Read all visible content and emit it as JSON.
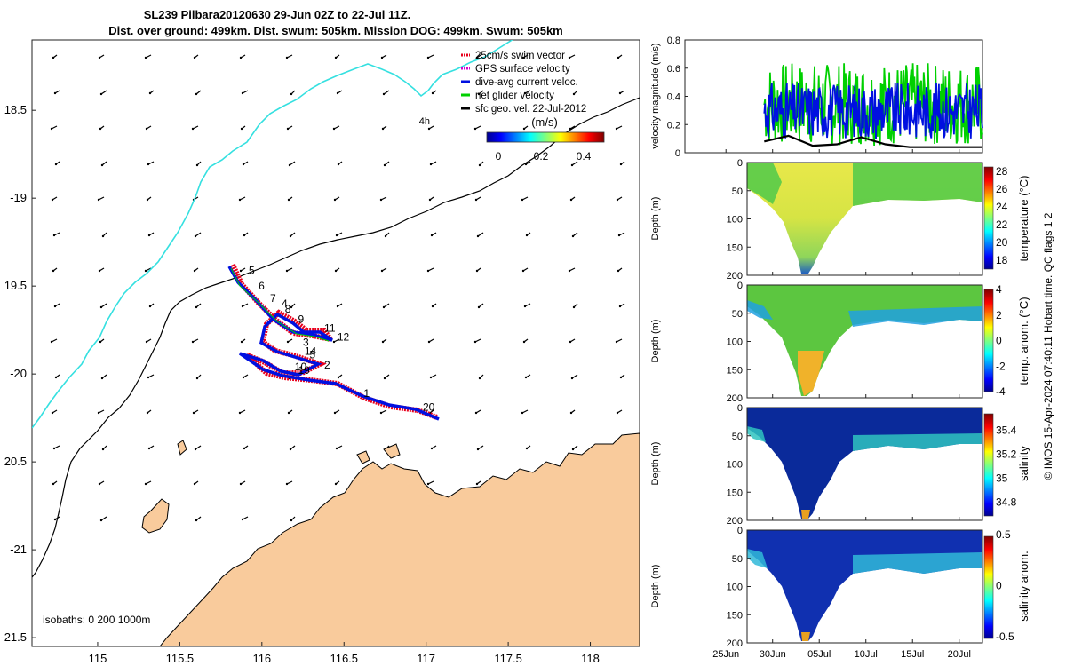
{
  "header": {
    "line1": "SL239 Pilbara20120630 29-Jun 02Z to 22-Jul 11Z.",
    "line2": "Dist. over ground: 499km. Dist. swum: 505km. Mission DOG: 499km. Swum: 505km"
  },
  "map": {
    "lat_ticks": [
      "18.5",
      "-19",
      "19.5",
      "-20",
      "20.5",
      "-21",
      "-21.5"
    ],
    "lon_ticks": [
      "115",
      "115.5",
      "116",
      "116.5",
      "117",
      "117.5",
      "118"
    ],
    "lon_range": [
      114.6,
      118.3
    ],
    "lat_range": [
      -21.55,
      -18.1
    ],
    "legend": [
      "25cm/s swim vector",
      "GPS surface velocity",
      "dive-avg current veloc.",
      "net glider velocity",
      "sfc geo. vel. 22-Jul-2012"
    ],
    "legend_colors": [
      "#e8001c",
      "#d000d0",
      "#0010e0",
      "#00d000",
      "#000000"
    ],
    "colorbar_units": "(m/s)",
    "colorbar_ticks": [
      "0",
      "0.2",
      "0.4"
    ],
    "time_step_label": "4h",
    "isobath_label": "isobaths: 0   200  1000m",
    "colors": {
      "land": "#f9cb9c",
      "coast": "#000000",
      "isobath_200": "#000000",
      "isobath_1000": "#35e0e0"
    },
    "track_numbers": [
      {
        "label": "5",
        "lon": 115.92,
        "lat": -19.43
      },
      {
        "label": "6",
        "lon": 115.98,
        "lat": -19.52
      },
      {
        "label": "7",
        "lon": 116.05,
        "lat": -19.59
      },
      {
        "label": "4",
        "lon": 116.12,
        "lat": -19.62
      },
      {
        "label": "8",
        "lon": 116.14,
        "lat": -19.65
      },
      {
        "label": "9",
        "lon": 116.22,
        "lat": -19.71
      },
      {
        "label": "11",
        "lon": 116.38,
        "lat": -19.76
      },
      {
        "label": "12",
        "lon": 116.46,
        "lat": -19.81
      },
      {
        "label": "3",
        "lon": 116.25,
        "lat": -19.84
      },
      {
        "label": "14",
        "lon": 116.26,
        "lat": -19.89
      },
      {
        "label": "5",
        "lon": 116.29,
        "lat": -19.91
      },
      {
        "label": "2",
        "lon": 116.38,
        "lat": -19.97
      },
      {
        "label": "10",
        "lon": 116.2,
        "lat": -19.98
      },
      {
        "label": "19",
        "lon": 116.22,
        "lat": -20.0
      },
      {
        "label": "1",
        "lon": 116.62,
        "lat": -20.13
      },
      {
        "label": "20",
        "lon": 116.98,
        "lat": -20.21
      }
    ]
  },
  "chart_data": [
    {
      "type": "line",
      "ylabel": "velocity magnitude (m/s)",
      "ylim": [
        0,
        0.8
      ],
      "y_ticks": [
        "0",
        "0.2",
        "0.4",
        "0.6",
        "0.8"
      ],
      "x_ticks": [
        "25Jun",
        "30Jun",
        "05Jul",
        "10Jul",
        "15Jul",
        "20Jul"
      ],
      "series": [
        {
          "name": "net glider velocity",
          "color": "#00d000",
          "range": [
            0.05,
            0.64
          ]
        },
        {
          "name": "dive-avg current veloc.",
          "color": "#0010e0",
          "range": [
            0.1,
            0.5
          ]
        },
        {
          "name": "sfc geo. vel. 22-Jul-2012",
          "color": "#000000",
          "values_approx": [
            0.08,
            0.12,
            0.05,
            0.06,
            0.11,
            0.06,
            0.04,
            0.04,
            0.04,
            0.04
          ]
        }
      ]
    },
    {
      "type": "heatmap",
      "ylabel": "Depth (m)",
      "colorbar_label": "temperature (°C)",
      "y_ticks": [
        "0",
        "50",
        "100",
        "150",
        "200"
      ],
      "cbar_ticks": [
        "28",
        "26",
        "24",
        "22",
        "20",
        "18"
      ],
      "cbar_range": [
        17,
        28.5
      ]
    },
    {
      "type": "heatmap",
      "ylabel": "Depth (m)",
      "colorbar_label": "temp. anom. (°C)",
      "y_ticks": [
        "0",
        "50",
        "100",
        "150",
        "200"
      ],
      "cbar_ticks": [
        "4",
        "2",
        "0",
        "-2",
        "-4"
      ],
      "cbar_range": [
        -4,
        4
      ]
    },
    {
      "type": "heatmap",
      "ylabel": "Depth (m)",
      "colorbar_label": "salinity",
      "y_ticks": [
        "0",
        "50",
        "100",
        "150",
        "200"
      ],
      "cbar_ticks": [
        "35.4",
        "35.2",
        "35",
        "34.8"
      ],
      "cbar_range": [
        34.7,
        35.55
      ]
    },
    {
      "type": "heatmap",
      "ylabel": "Depth (m)",
      "colorbar_label": "salinity anom.",
      "y_ticks": [
        "0",
        "50",
        "100",
        "150",
        "200"
      ],
      "cbar_ticks": [
        "0.5",
        "0",
        "-0.5"
      ],
      "cbar_range": [
        -0.5,
        0.5
      ]
    }
  ],
  "footer": {
    "credit": "© IMOS 15-Apr-2024 07:40:11 Hobart time. QC flags 1  2"
  }
}
